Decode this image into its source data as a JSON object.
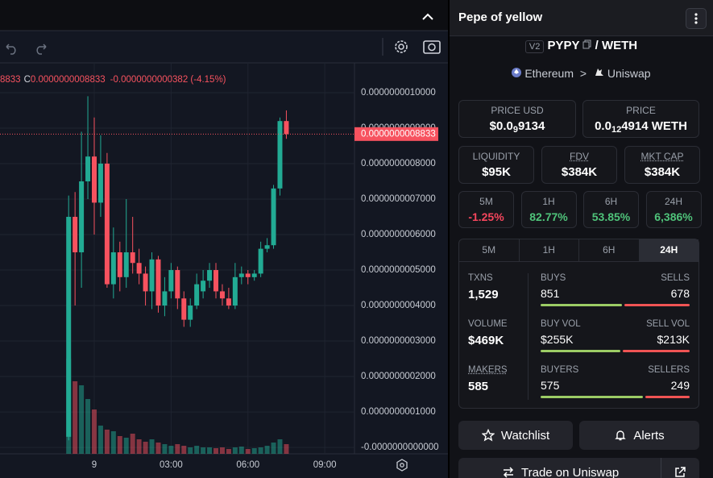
{
  "chart_data": {
    "type": "candlestick",
    "readout": {
      "open_tail": "8833",
      "close_key": "C",
      "close": "0.0000000008833",
      "change": "-0.0000000000382 (-4.15%)"
    },
    "x": [
      -1,
      -0.75,
      -0.5,
      -0.25,
      0,
      0.25,
      0.5,
      0.75,
      1,
      1.25,
      1.5,
      1.75,
      2,
      2.25,
      2.5,
      2.75,
      3,
      3.25,
      3.5,
      3.75,
      4,
      4.25,
      4.5,
      4.75,
      5,
      5.25,
      5.5,
      5.75,
      6,
      6.25,
      6.5,
      6.75,
      7,
      7.25,
      7.5
    ],
    "open": [
      3e-11,
      6.5e-10,
      5.5e-10,
      7.5e-10,
      8.2e-10,
      6.9e-10,
      8e-10,
      4.6e-10,
      5.5e-10,
      4.8e-10,
      5.5e-10,
      5.2e-10,
      4.9e-10,
      4.4e-10,
      5.3e-10,
      4e-10,
      4.4e-10,
      5e-10,
      4.2e-10,
      3.6e-10,
      4e-10,
      4.4e-10,
      4.7e-10,
      5e-10,
      4.4e-10,
      4.2e-10,
      4e-10,
      4.8e-10,
      4.9e-10,
      4.8e-10,
      4.9e-10,
      5.6e-10,
      5.7e-10,
      7.3e-10,
      9.2e-10
    ],
    "high": [
      7.1e-10,
      7.2e-10,
      8.9e-10,
      9.9e-10,
      9.3e-10,
      8.8e-10,
      8.3e-10,
      6.2e-10,
      5.8e-10,
      7e-10,
      6.5e-10,
      5.6e-10,
      5.1e-10,
      5.5e-10,
      5.4e-10,
      4.8e-10,
      5.2e-10,
      5.1e-10,
      4.4e-10,
      4.2e-10,
      4.9e-10,
      5e-10,
      5.2e-10,
      5.2e-10,
      4.6e-10,
      4.5e-10,
      5.2e-10,
      5.1e-10,
      5e-10,
      5e-10,
      5.8e-10,
      5.9e-10,
      7.4e-10,
      9.3e-10,
      9.5e-10
    ],
    "low": [
      2e-11,
      4e-10,
      4.5e-10,
      7e-10,
      6e-10,
      6.5e-10,
      4.5e-10,
      4.2e-10,
      4.4e-10,
      4.5e-10,
      4.9e-10,
      4.6e-10,
      4e-10,
      3.9e-10,
      3.8e-10,
      3.7e-10,
      4.2e-10,
      3.9e-10,
      3.4e-10,
      3.4e-10,
      3.9e-10,
      4.2e-10,
      4.5e-10,
      4.2e-10,
      4e-10,
      3.9e-10,
      3.9e-10,
      4.6e-10,
      4.6e-10,
      4.7e-10,
      4.8e-10,
      5.5e-10,
      5.6e-10,
      7.1e-10,
      8.7e-10
    ],
    "close": [
      6.5e-10,
      5.5e-10,
      7.5e-10,
      8.2e-10,
      6.9e-10,
      8e-10,
      4.6e-10,
      5.5e-10,
      4.8e-10,
      5.5e-10,
      5.2e-10,
      4.9e-10,
      4.4e-10,
      5.3e-10,
      4e-10,
      4.4e-10,
      5e-10,
      4.2e-10,
      3.6e-10,
      4e-10,
      4.6e-10,
      4.7e-10,
      5e-10,
      4.4e-10,
      4.2e-10,
      4e-10,
      4.8e-10,
      4.9e-10,
      4.8e-10,
      4.9e-10,
      5.6e-10,
      5.7e-10,
      7.3e-10,
      9.2e-10,
      8.833e-10
    ],
    "volume": [
      118,
      90,
      85,
      68,
      55,
      35,
      30,
      28,
      22,
      20,
      25,
      18,
      15,
      18,
      14,
      12,
      10,
      12,
      10,
      8,
      10,
      8,
      8,
      7,
      8,
      6,
      8,
      9,
      6,
      7,
      8,
      10,
      14,
      18,
      12
    ],
    "up_color": "#22ab94",
    "down_color": "#f7525f",
    "xlim": [
      -3.68,
      10.16
    ],
    "xticks": [
      {
        "value": 0,
        "label": "9"
      },
      {
        "value": 3,
        "label": "03:00"
      },
      {
        "value": 6,
        "label": "06:00"
      },
      {
        "value": 9,
        "label": "09:00"
      }
    ],
    "ylim": [
      -1.8e-11,
      1.084e-09
    ],
    "yticks": [
      {
        "value": 1e-09,
        "label": "0.0000000010000"
      },
      {
        "value": 9e-10,
        "label": "0.0000000009000"
      },
      {
        "value": 8e-10,
        "label": "0.0000000008000"
      },
      {
        "value": 7e-10,
        "label": "0.0000000007000"
      },
      {
        "value": 6e-10,
        "label": "0.0000000006000"
      },
      {
        "value": 5e-10,
        "label": "0.0000000005000"
      },
      {
        "value": 4e-10,
        "label": "0.0000000004000"
      },
      {
        "value": 3e-10,
        "label": "0.0000000003000"
      },
      {
        "value": 2e-10,
        "label": "0.0000000002000"
      },
      {
        "value": 1e-10,
        "label": "0.0000000001000"
      },
      {
        "value": 0,
        "label": "-0.0000000000000"
      }
    ],
    "last_price": {
      "value": 8.833e-10,
      "label": "0.0000000008833"
    },
    "grid": true
  },
  "panel": {
    "title": "Pepe of yellow",
    "pair": {
      "version": "V2",
      "base": "PYPY",
      "quote": "/ WETH",
      "chain": "Ethereum",
      "separator": ">",
      "dex": "Uniswap"
    },
    "price_usd": {
      "label": "PRICE USD",
      "prefix": "$0.0",
      "zeros": "9",
      "digits": "9134"
    },
    "price": {
      "label": "PRICE",
      "prefix": "0.0",
      "zeros": "12",
      "digits": "4914 WETH"
    },
    "metrics": [
      {
        "label": "LIQUIDITY",
        "value": "$95K"
      },
      {
        "label": "FDV",
        "value": "$384K"
      },
      {
        "label": "MKT CAP",
        "value": "$384K"
      }
    ],
    "changes": [
      {
        "label": "5M",
        "value": "-1.25%",
        "color": "#f6465d"
      },
      {
        "label": "1H",
        "value": "82.77%",
        "color": "#4fc37a"
      },
      {
        "label": "6H",
        "value": "53.85%",
        "color": "#4fc37a"
      },
      {
        "label": "24H",
        "value": "6,386%",
        "color": "#4fc37a"
      }
    ],
    "tabs": [
      "5M",
      "1H",
      "6H",
      "24H"
    ],
    "active_tab": 3,
    "stats": [
      {
        "label": "TXNS",
        "value": "1,529"
      },
      {
        "label": "VOLUME",
        "value": "$469K"
      },
      {
        "label": "MAKERS",
        "value": "585"
      }
    ],
    "splits": [
      {
        "left_label": "BUYS",
        "left": 851,
        "right_label": "SELLS",
        "right": 678
      },
      {
        "left_label": "BUY VOL",
        "left": {
          "value": 255000,
          "label": "$255K"
        },
        "right_label": "SELL VOL",
        "right": {
          "value": 213000,
          "label": "$213K"
        }
      },
      {
        "left_label": "BUYERS",
        "left": 575,
        "right_label": "SELLERS",
        "right": 249
      }
    ],
    "split_colors": [
      "#9ccc65",
      "#f05454"
    ],
    "buttons": {
      "watchlist": "Watchlist",
      "alerts": "Alerts",
      "trade": "Trade on Uniswap"
    }
  }
}
